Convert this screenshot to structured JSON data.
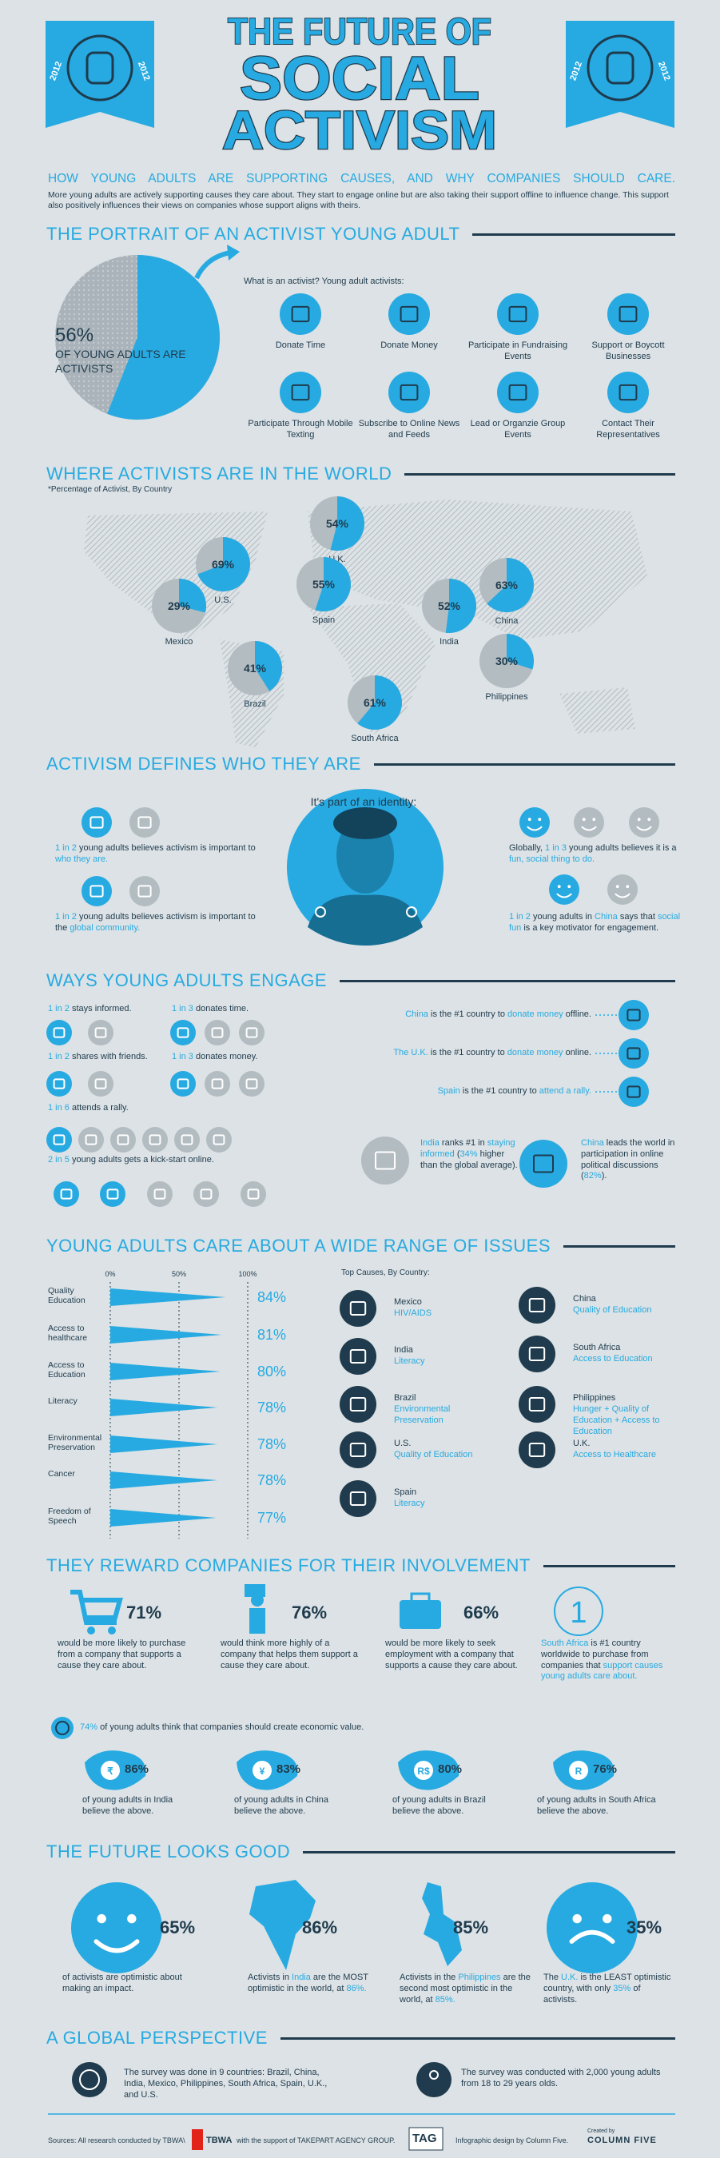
{
  "header": {
    "title_line1": "THE FUTURE OF",
    "title_line2": "SOCIAL",
    "title_line3": "ACTIVISM",
    "badge_year": "2012",
    "subtitle": "HOW YOUNG ADULTS ARE SUPPORTING CAUSES, AND WHY COMPANIES SHOULD CARE.",
    "intro": "More young adults are actively supporting causes they care about. They start to engage online but are also taking their support offline to influence change. This support also positively influences their views on companies whose support aligns with theirs."
  },
  "portrait": {
    "heading": "THE PORTRAIT OF AN ACTIVIST YOUNG ADULT",
    "pie": {
      "value": 56,
      "label": "56%"
    },
    "pie_caption": "OF YOUNG ADULTS ARE ACTIVISTS",
    "question": "What is an activist? Young adult activists:",
    "types": [
      "Donate Time",
      "Donate Money",
      "Participate in Fundraising Events",
      "Support or Boycott Businesses",
      "Participate Through Mobile Texting",
      "Subscribe to Online News and Feeds",
      "Lead or Organzie Group Events",
      "Contact Their Representatives"
    ]
  },
  "world": {
    "heading": "WHERE ACTIVISTS ARE IN THE WORLD",
    "note": "*Percentage of Activist, By Country",
    "countries": [
      {
        "name": "U.K.",
        "pct": {
          "value": 54,
          "label": "54%"
        }
      },
      {
        "name": "U.S.",
        "pct": {
          "value": 69,
          "label": "69%"
        }
      },
      {
        "name": "Spain",
        "pct": {
          "value": 55,
          "label": "55%"
        }
      },
      {
        "name": "Mexico",
        "pct": {
          "value": 29,
          "label": "29%"
        }
      },
      {
        "name": "India",
        "pct": {
          "value": 52,
          "label": "52%"
        }
      },
      {
        "name": "China",
        "pct": {
          "value": 63,
          "label": "63%"
        }
      },
      {
        "name": "Brazil",
        "pct": {
          "value": 41,
          "label": "41%"
        }
      },
      {
        "name": "Philippines",
        "pct": {
          "value": 30,
          "label": "30%"
        }
      },
      {
        "name": "South Africa",
        "pct": {
          "value": 61,
          "label": "61%"
        }
      }
    ]
  },
  "identity": {
    "heading": "ACTIVISM DEFINES WHO THEY ARE",
    "lead": "It's part of an identity:",
    "facts": [
      [
        {
          "text": "1 in 2",
          "highlight": true
        },
        " young adults believes activism is important to ",
        {
          "text": "who they are.",
          "highlight": true
        }
      ],
      [
        {
          "text": "1 in 2",
          "highlight": true
        },
        " young adults believes activism is important to the ",
        {
          "text": "global community.",
          "highlight": true
        }
      ],
      [
        "Globally, ",
        {
          "text": "1 in 3",
          "highlight": true
        },
        " young adults believes it is a ",
        {
          "text": "fun, social thing to do.",
          "highlight": true
        }
      ],
      [
        {
          "text": "1 in 2",
          "highlight": true
        },
        " young adults in ",
        {
          "text": "China",
          "highlight": true
        },
        " says that ",
        {
          "text": "social fun",
          "highlight": true
        },
        " is a key motivator for engagement."
      ]
    ]
  },
  "engage": {
    "heading": "WAYS YOUNG ADULTS ENGAGE",
    "items": [
      [
        {
          "text": "1 in 2",
          "highlight": true
        },
        " stays informed."
      ],
      [
        {
          "text": "1 in 3",
          "highlight": true
        },
        " donates time."
      ],
      [
        {
          "text": "1 in 2",
          "highlight": true
        },
        " shares with friends."
      ],
      [
        {
          "text": "1 in 3",
          "highlight": true
        },
        " donates money."
      ],
      [
        {
          "text": "1 in 6",
          "highlight": true
        },
        " attends a rally."
      ],
      [
        {
          "text": "2 in 5",
          "highlight": true
        },
        " young adults gets a kick-start online."
      ]
    ],
    "facts": [
      [
        {
          "text": "China",
          "highlight": true
        },
        " is the #1 country to ",
        {
          "text": "donate money",
          "highlight": true
        },
        " offline."
      ],
      [
        {
          "text": "The U.K.",
          "highlight": true
        },
        " is the #1 country to ",
        {
          "text": "donate money",
          "highlight": true
        },
        " online."
      ],
      [
        {
          "text": "Spain",
          "highlight": true
        },
        " is the #1 country to ",
        {
          "text": "attend a rally.",
          "highlight": true
        }
      ]
    ],
    "highlights": [
      [
        {
          "text": "India",
          "highlight": true
        },
        " ranks #1 in ",
        {
          "text": "staying informed",
          "highlight": true
        },
        " (",
        {
          "text": "34%",
          "highlight": true
        },
        " higher than the global average)."
      ],
      [
        {
          "text": "China",
          "highlight": true
        },
        " leads the world in participation in online political discussions (",
        {
          "text": "82%",
          "highlight": true
        },
        ")."
      ]
    ]
  },
  "issues": {
    "heading": "YOUNG ADULTS CARE ABOUT A WIDE RANGE OF ISSUES",
    "xlim": [
      0,
      100
    ],
    "xticks": [
      {
        "value": 0,
        "label": "0%"
      },
      {
        "value": 50,
        "label": "50%"
      },
      {
        "value": 100,
        "label": "100%"
      }
    ],
    "categories": [
      "Quality Education",
      "Access to healthcare",
      "Access to Education",
      "Literacy",
      "Environmental Preservation",
      "Cancer",
      "Freedom of Speech"
    ],
    "values": [
      84,
      81,
      80,
      78,
      78,
      78,
      77
    ],
    "value_labels": [
      "84%",
      "81%",
      "80%",
      "78%",
      "78%",
      "78%",
      "77%"
    ],
    "top_causes_label": "Top Causes, By Country:",
    "top_causes": [
      {
        "country": "Mexico",
        "cause": "HIV/AIDS"
      },
      {
        "country": "India",
        "cause": "Literacy"
      },
      {
        "country": "Brazil",
        "cause": "Environmental Preservation"
      },
      {
        "country": "U.S.",
        "cause": "Quality of Education"
      },
      {
        "country": "Spain",
        "cause": "Literacy"
      },
      {
        "country": "China",
        "cause": "Quality of Education"
      },
      {
        "country": "South Africa",
        "cause": "Access to Education"
      },
      {
        "country": "Philippines",
        "cause": "Hunger + Quality of Education + Access to Education"
      },
      {
        "country": "U.K.",
        "cause": "Access to Healthcare"
      }
    ]
  },
  "reward": {
    "heading": "THEY REWARD COMPANIES FOR THEIR INVOLVEMENT",
    "stats": [
      {
        "pct": "71%",
        "text": "would be more likely to purchase from a company that supports a cause they care about."
      },
      {
        "pct": "76%",
        "text": "would think more highly of a company that helps them support a cause they care about."
      },
      {
        "pct": "66%",
        "text": "would be more likely to seek employment with a company that supports a cause they care about."
      }
    ],
    "rank": "1",
    "rank_fact": [
      {
        "text": "South Africa",
        "highlight": true
      },
      " is #1 country worldwide to purchase from companies that ",
      {
        "text": "support causes young adults care about.",
        "highlight": true
      }
    ],
    "economic": [
      {
        "text": "74%",
        "highlight": true
      },
      " of young adults think that companies should create economic value."
    ],
    "countries": [
      {
        "symbol": "₹",
        "pct": "86%",
        "text": "of young adults in India believe the above."
      },
      {
        "symbol": "¥",
        "pct": "83%",
        "text": "of young adults in China believe the above."
      },
      {
        "symbol": "R$",
        "pct": "80%",
        "text": "of young adults in Brazil believe the above."
      },
      {
        "symbol": "R",
        "pct": "76%",
        "text": "of young adults in South Africa believe the above."
      }
    ]
  },
  "future": {
    "heading": "THE FUTURE LOOKS GOOD",
    "items": [
      {
        "pct": "65%",
        "text": [
          "of activists are optimistic about making an impact."
        ]
      },
      {
        "pct": "86%",
        "text": [
          "Activists in ",
          {
            "text": "India",
            "highlight": true
          },
          " are the MOST optimistic in the world, at ",
          {
            "text": "86%.",
            "highlight": true
          }
        ]
      },
      {
        "pct": "85%",
        "text": [
          "Activists in the ",
          {
            "text": "Philippines",
            "highlight": true
          },
          " are the second most optimistic in the world, at ",
          {
            "text": "85%.",
            "highlight": true
          }
        ]
      },
      {
        "pct": "35%",
        "text": [
          "The ",
          {
            "text": "U.K.",
            "highlight": true
          },
          " is the LEAST optimistic country, with only ",
          {
            "text": "35%",
            "highlight": true
          },
          " of activists."
        ]
      }
    ]
  },
  "global": {
    "heading": "A GLOBAL PERSPECTIVE",
    "facts": [
      "The survey was done in 9 countries: Brazil, China, India, Mexico, Philippines, South Africa, Spain, U.K., and U.S.",
      "The survey was conducted with 2,000 young adults from 18 to 29 years olds."
    ]
  },
  "footer": {
    "sources": "Sources: All research conducted by TBWA\\",
    "tbwa": "TBWA",
    "support": "with the support of TAKEPART AGENCY GROUP.",
    "tag": "TAG",
    "design": "Infographic design by Column Five.",
    "created_by": "Created by",
    "column_five": "COLUMN FIVE"
  }
}
